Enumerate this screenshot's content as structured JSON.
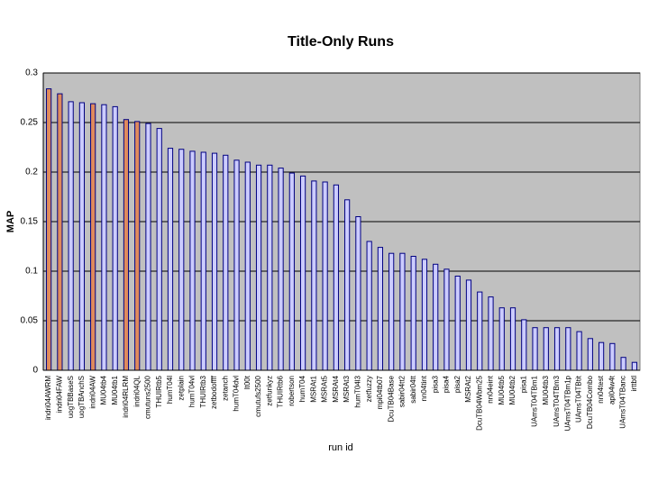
{
  "chart_data": {
    "type": "bar",
    "title": "Title-Only Runs",
    "x_label": "run id",
    "y_label": "MAP",
    "categories": [
      "indri04AWRM",
      "indri04FAW",
      "uogTBBaseS",
      "uogTBAnchS",
      "indri04AW",
      "MU04tb4",
      "MU04tb1",
      "indri04RLRM",
      "indri04QL",
      "cmutuns2500",
      "THUIRtb5",
      "humT04l",
      "zetplain",
      "humT04vl",
      "THUIRtb3",
      "zetbodoffff",
      "zetanch",
      "humT04dvl",
      "lt00t",
      "cmutufs2500",
      "zetfunkyz",
      "THUIRtb6",
      "robertson",
      "humT04",
      "MSRAt1",
      "MSRAt5",
      "MSRAt4",
      "MSRAt3",
      "humT04l3",
      "zetfuzzy",
      "mpi04tb07",
      "DcuTB04Base",
      "sabir04tt2",
      "sabir04tt",
      "nn04tint",
      "pisa3",
      "pisa4",
      "pisa2",
      "MSRAt2",
      "DcuTB04Wbm25",
      "nn04eint",
      "MU04tb5",
      "MU04tb2",
      "pisa1",
      "UAmsT04TBm1",
      "MU04tb3",
      "UAmsT04TBm3",
      "UAmsT04TBm1p",
      "UAmsT04TBtit",
      "DcuTB04Combo",
      "nn04test",
      "apl04w4t",
      "UAmsT04TBanc",
      "irttbtl"
    ],
    "values": [
      0.284,
      0.279,
      0.271,
      0.27,
      0.269,
      0.268,
      0.266,
      0.253,
      0.251,
      0.249,
      0.244,
      0.224,
      0.223,
      0.221,
      0.22,
      0.219,
      0.217,
      0.212,
      0.21,
      0.207,
      0.207,
      0.204,
      0.199,
      0.196,
      0.191,
      0.19,
      0.187,
      0.172,
      0.155,
      0.13,
      0.124,
      0.118,
      0.118,
      0.115,
      0.112,
      0.107,
      0.102,
      0.095,
      0.091,
      0.079,
      0.074,
      0.063,
      0.063,
      0.051,
      0.043,
      0.043,
      0.043,
      0.043,
      0.039,
      0.032,
      0.028,
      0.027,
      0.013,
      0.008
    ],
    "color": "#ccccff",
    "highlight_color": "#e08a5c",
    "highlighted": [
      0,
      1,
      4,
      7,
      8
    ],
    "ylim": [
      0,
      0.3
    ],
    "yticks": [
      0,
      0.05,
      0.1,
      0.15,
      0.2,
      0.25,
      0.3
    ],
    "grid": true
  }
}
